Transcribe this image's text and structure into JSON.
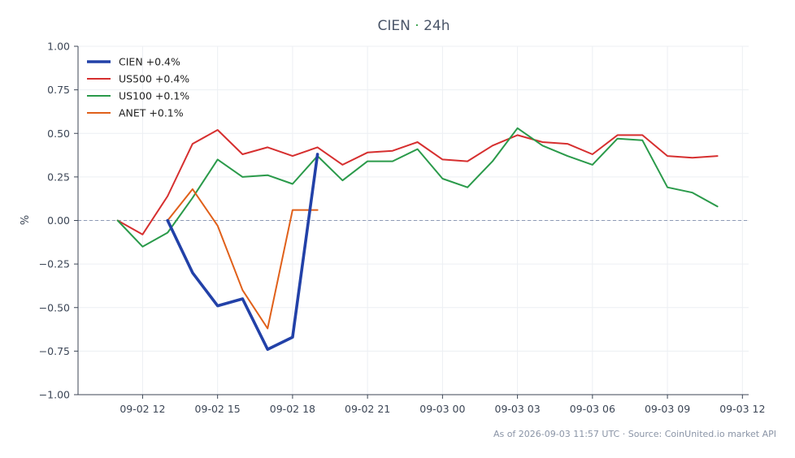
{
  "chart_data": {
    "type": "line",
    "title": {
      "symbol": "CIEN",
      "separator": "·",
      "period": "24h"
    },
    "ylabel": "%",
    "ylim": [
      -1.0,
      1.0
    ],
    "yticks": [
      1.0,
      0.75,
      0.5,
      0.25,
      0.0,
      -0.25,
      -0.5,
      -0.75,
      -1.0
    ],
    "ytick_labels": [
      "1.00",
      "0.75",
      "0.50",
      "0.25",
      "0.00",
      "−0.25",
      "−0.50",
      "−0.75",
      "−1.00"
    ],
    "xlim": [
      "2026-09-02 09:25",
      "2026-09-03 12:15"
    ],
    "xticks": [
      "2026-09-02 12:00",
      "2026-09-02 15:00",
      "2026-09-02 18:00",
      "2026-09-02 21:00",
      "2026-09-03 00:00",
      "2026-09-03 03:00",
      "2026-09-03 06:00",
      "2026-09-03 09:00",
      "2026-09-03 12:00"
    ],
    "xtick_labels": [
      "09-02 12",
      "09-02 15",
      "09-02 18",
      "09-02 21",
      "09-03 00",
      "09-03 03",
      "09-03 06",
      "09-03 09",
      "09-03 12"
    ],
    "zero_line": true,
    "grid": true,
    "legend_position": "top-left",
    "series": [
      {
        "name": "CIEN +0.4%",
        "color": "#2241a8",
        "emphasis": true,
        "points": [
          [
            "2026-09-02 13:00",
            0.0
          ],
          [
            "2026-09-02 14:00",
            -0.3
          ],
          [
            "2026-09-02 15:00",
            -0.49
          ],
          [
            "2026-09-02 16:00",
            -0.45
          ],
          [
            "2026-09-02 17:00",
            -0.74
          ],
          [
            "2026-09-02 18:00",
            -0.67
          ],
          [
            "2026-09-02 19:00",
            0.38
          ]
        ]
      },
      {
        "name": "US500 +0.4%",
        "color": "#d62f2f",
        "points": [
          [
            "2026-09-02 11:00",
            0.0
          ],
          [
            "2026-09-02 12:00",
            -0.08
          ],
          [
            "2026-09-02 13:00",
            0.14
          ],
          [
            "2026-09-02 14:00",
            0.44
          ],
          [
            "2026-09-02 15:00",
            0.52
          ],
          [
            "2026-09-02 16:00",
            0.38
          ],
          [
            "2026-09-02 17:00",
            0.42
          ],
          [
            "2026-09-02 18:00",
            0.37
          ],
          [
            "2026-09-02 19:00",
            0.42
          ],
          [
            "2026-09-02 20:00",
            0.32
          ],
          [
            "2026-09-02 21:00",
            0.39
          ],
          [
            "2026-09-02 22:00",
            0.4
          ],
          [
            "2026-09-02 23:00",
            0.45
          ],
          [
            "2026-09-03 00:00",
            0.35
          ],
          [
            "2026-09-03 01:00",
            0.34
          ],
          [
            "2026-09-03 02:00",
            0.43
          ],
          [
            "2026-09-03 03:00",
            0.49
          ],
          [
            "2026-09-03 04:00",
            0.45
          ],
          [
            "2026-09-03 05:00",
            0.44
          ],
          [
            "2026-09-03 06:00",
            0.38
          ],
          [
            "2026-09-03 07:00",
            0.49
          ],
          [
            "2026-09-03 08:00",
            0.49
          ],
          [
            "2026-09-03 09:00",
            0.37
          ],
          [
            "2026-09-03 10:00",
            0.36
          ],
          [
            "2026-09-03 11:00",
            0.37
          ]
        ]
      },
      {
        "name": "US100 +0.1%",
        "color": "#2a9a4a",
        "points": [
          [
            "2026-09-02 11:00",
            0.0
          ],
          [
            "2026-09-02 12:00",
            -0.15
          ],
          [
            "2026-09-02 13:00",
            -0.07
          ],
          [
            "2026-09-02 14:00",
            0.13
          ],
          [
            "2026-09-02 15:00",
            0.35
          ],
          [
            "2026-09-02 16:00",
            0.25
          ],
          [
            "2026-09-02 17:00",
            0.26
          ],
          [
            "2026-09-02 18:00",
            0.21
          ],
          [
            "2026-09-02 19:00",
            0.37
          ],
          [
            "2026-09-02 20:00",
            0.23
          ],
          [
            "2026-09-02 21:00",
            0.34
          ],
          [
            "2026-09-02 22:00",
            0.34
          ],
          [
            "2026-09-02 23:00",
            0.41
          ],
          [
            "2026-09-03 00:00",
            0.24
          ],
          [
            "2026-09-03 01:00",
            0.19
          ],
          [
            "2026-09-03 02:00",
            0.34
          ],
          [
            "2026-09-03 03:00",
            0.53
          ],
          [
            "2026-09-03 04:00",
            0.43
          ],
          [
            "2026-09-03 05:00",
            0.37
          ],
          [
            "2026-09-03 06:00",
            0.32
          ],
          [
            "2026-09-03 07:00",
            0.47
          ],
          [
            "2026-09-03 08:00",
            0.46
          ],
          [
            "2026-09-03 09:00",
            0.19
          ],
          [
            "2026-09-03 10:00",
            0.16
          ],
          [
            "2026-09-03 11:00",
            0.08
          ]
        ]
      },
      {
        "name": "ANET +0.1%",
        "color": "#e0601a",
        "points": [
          [
            "2026-09-02 13:00",
            0.0
          ],
          [
            "2026-09-02 14:00",
            0.18
          ],
          [
            "2026-09-02 15:00",
            -0.03
          ],
          [
            "2026-09-02 16:00",
            -0.4
          ],
          [
            "2026-09-02 17:00",
            -0.62
          ],
          [
            "2026-09-02 18:00",
            0.06
          ],
          [
            "2026-09-02 19:00",
            0.06
          ]
        ]
      }
    ],
    "footer": "As of 2026-09-03 11:57 UTC · Source: CoinUnited.io market API"
  }
}
